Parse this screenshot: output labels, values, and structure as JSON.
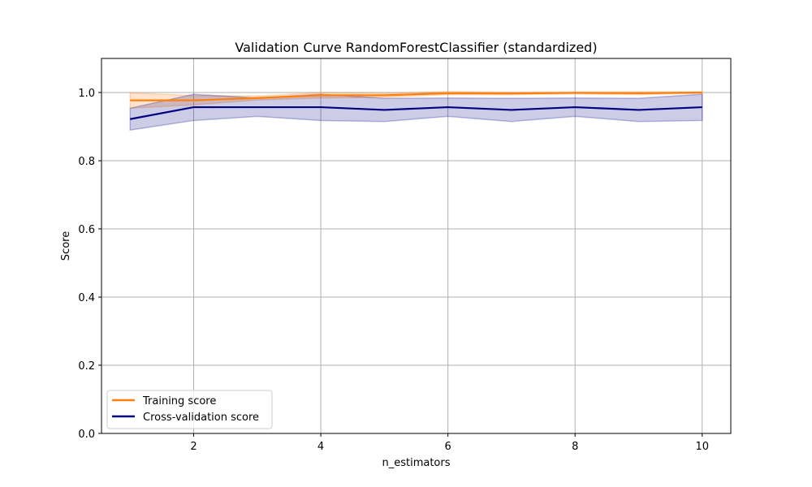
{
  "chart_data": {
    "type": "line",
    "title": "Validation Curve RandomForestClassifier (standardized)",
    "xlabel": "n_estimators",
    "ylabel": "Score",
    "xlim": [
      0.55,
      10.45
    ],
    "ylim": [
      0.0,
      1.1
    ],
    "xticks": [
      2,
      4,
      6,
      8,
      10
    ],
    "yticks": [
      0.0,
      0.2,
      0.4,
      0.6,
      0.8,
      1.0
    ],
    "ytick_labels": [
      "0.0",
      "0.2",
      "0.4",
      "0.6",
      "0.8",
      "1.0"
    ],
    "grid": true,
    "legend_position": "lower-left",
    "x": [
      1,
      2,
      3,
      4,
      5,
      6,
      7,
      8,
      9,
      10
    ],
    "series": [
      {
        "name": "Training score",
        "color": "#ff7f0e",
        "values": [
          0.977,
          0.977,
          0.984,
          0.992,
          0.992,
          0.998,
          0.997,
          0.999,
          0.998,
          1.0
        ],
        "lower": [
          0.954,
          0.964,
          0.978,
          0.984,
          0.986,
          0.994,
          0.994,
          0.996,
          0.994,
          0.998
        ],
        "upper": [
          0.999,
          0.991,
          0.99,
          1.0,
          0.998,
          1.003,
          1.001,
          1.002,
          1.002,
          1.002
        ]
      },
      {
        "name": "Cross-validation score",
        "color": "#000080",
        "values": [
          0.922,
          0.957,
          0.957,
          0.957,
          0.949,
          0.957,
          0.949,
          0.957,
          0.949,
          0.957
        ],
        "lower": [
          0.89,
          0.918,
          0.93,
          0.918,
          0.915,
          0.93,
          0.915,
          0.93,
          0.915,
          0.918
        ],
        "upper": [
          0.954,
          0.995,
          0.984,
          0.995,
          0.983,
          0.984,
          0.983,
          0.984,
          0.983,
          0.995
        ]
      }
    ]
  }
}
